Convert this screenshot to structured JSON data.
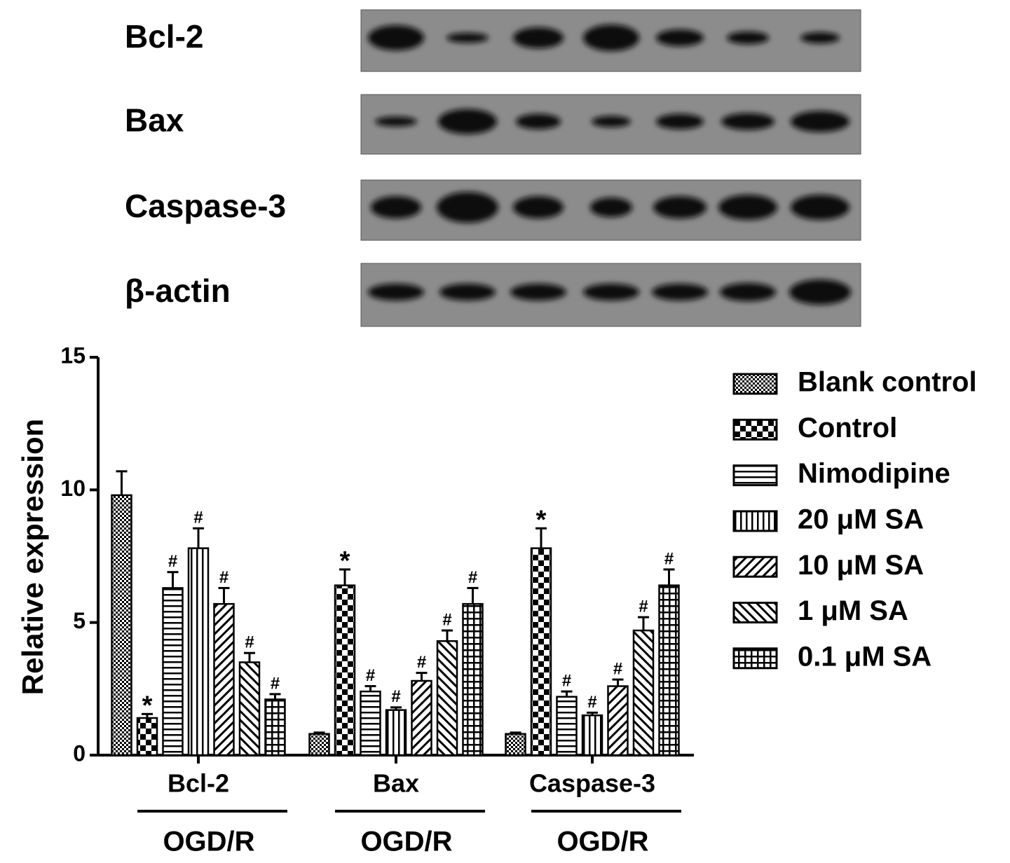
{
  "blot_labels": [
    "Bcl-2",
    "Bax",
    "Caspase-3",
    "β-actin"
  ],
  "chart_data": {
    "type": "bar",
    "y_label": "Relative expression",
    "categories": [
      "Bcl-2",
      "Bax",
      "Caspase-3"
    ],
    "group_labels": [
      "OGD/R",
      "OGD/R",
      "OGD/R"
    ],
    "ylim": [
      0,
      15
    ],
    "yticks": [
      0,
      5,
      10,
      15
    ],
    "color": "#000000",
    "series": [
      {
        "name": "Blank control",
        "values": [
          9.8,
          0.8,
          0.8
        ],
        "errors": [
          0.9,
          0.05,
          0.05
        ],
        "annotations": [
          null,
          null,
          null
        ]
      },
      {
        "name": "Control",
        "values": [
          1.4,
          6.4,
          7.8
        ],
        "errors": [
          0.15,
          0.6,
          0.75
        ],
        "annotations": [
          "*",
          "*",
          "*"
        ]
      },
      {
        "name": "Nimodipine",
        "values": [
          6.3,
          2.4,
          2.2
        ],
        "errors": [
          0.6,
          0.2,
          0.2
        ],
        "annotations": [
          "#",
          "#",
          "#"
        ]
      },
      {
        "name": "20 μM SA",
        "values": [
          7.8,
          1.7,
          1.5
        ],
        "errors": [
          0.75,
          0.1,
          0.1
        ],
        "annotations": [
          "#",
          "#",
          "#"
        ]
      },
      {
        "name": "10 μM SA",
        "values": [
          5.7,
          2.8,
          2.6
        ],
        "errors": [
          0.6,
          0.3,
          0.25
        ],
        "annotations": [
          "#",
          "#",
          "#"
        ]
      },
      {
        "name": "1 μM SA",
        "values": [
          3.5,
          4.3,
          4.7
        ],
        "errors": [
          0.35,
          0.4,
          0.5
        ],
        "annotations": [
          "#",
          "#",
          "#"
        ]
      },
      {
        "name": "0.1 μM SA",
        "values": [
          2.1,
          5.7,
          6.4
        ],
        "errors": [
          0.2,
          0.6,
          0.6
        ],
        "annotations": [
          "#",
          "#",
          "#"
        ]
      }
    ]
  }
}
